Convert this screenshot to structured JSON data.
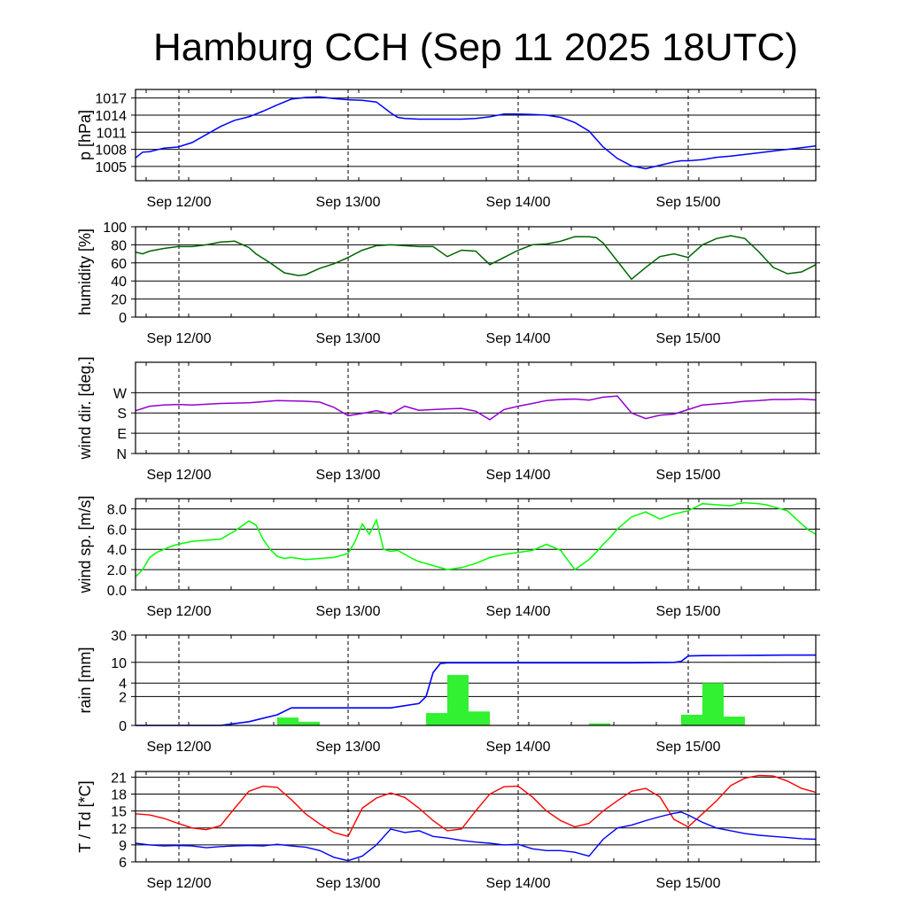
{
  "title": "Hamburg CCH (Sep 11 2025 18UTC)",
  "time_labels": [
    "Sep 12/00",
    "Sep 13/00",
    "Sep 14/00",
    "Sep 15/00"
  ],
  "colors": {
    "pressure": "#0000ff",
    "humidity": "#006400",
    "wind_dir": "#9400d3",
    "wind_speed": "#00ff00",
    "rain_bars": "#32f032",
    "rain_cum": "#0000ff",
    "temperature": "#ff0000",
    "dewpoint": "#0000ff"
  },
  "chart_data": [
    {
      "type": "line",
      "id": "pressure",
      "ylabel": "p [hPa]",
      "xrange_hours": [
        0,
        96
      ],
      "ylim": [
        1002.5,
        1018.5
      ],
      "yticks": [
        1005,
        1008,
        1011,
        1014,
        1017
      ],
      "series": [
        {
          "x": [
            0,
            1,
            2,
            3,
            4,
            6,
            8,
            12,
            14,
            16,
            18,
            20,
            22,
            24,
            26,
            28,
            30,
            32,
            34,
            36,
            37,
            38,
            40,
            42,
            44,
            46,
            48,
            50,
            52,
            54,
            56,
            58,
            60,
            62,
            64,
            66,
            68,
            70,
            72,
            74,
            76,
            77,
            78,
            80,
            82,
            84,
            86,
            88,
            90,
            92,
            94,
            96
          ],
          "y": [
            1006.5,
            1007.5,
            1007.6,
            1007.9,
            1008.2,
            1008.4,
            1009.2,
            1012.0,
            1013.1,
            1013.7,
            1014.7,
            1015.8,
            1016.8,
            1017.1,
            1017.2,
            1016.9,
            1016.7,
            1016.6,
            1016.3,
            1014.4,
            1013.6,
            1013.4,
            1013.3,
            1013.3,
            1013.3,
            1013.3,
            1013.4,
            1013.7,
            1014.2,
            1014.2,
            1014.1,
            1014.0,
            1013.6,
            1012.7,
            1011.2,
            1008.4,
            1006.4,
            1005.1,
            1004.6,
            1005.2,
            1005.8,
            1006.0,
            1006.0,
            1006.2,
            1006.6,
            1006.8,
            1007.1,
            1007.4,
            1007.7,
            1008.0,
            1008.3,
            1008.6
          ]
        }
      ]
    },
    {
      "type": "line",
      "id": "humidity",
      "ylabel": "humidity [%]",
      "xrange_hours": [
        0,
        96
      ],
      "ylim": [
        0,
        100
      ],
      "yticks": [
        0,
        20,
        40,
        60,
        80,
        100
      ],
      "series": [
        {
          "x": [
            0,
            1,
            2,
            4,
            6,
            8,
            10,
            12,
            14,
            16,
            17,
            19,
            21,
            23,
            24,
            26,
            28,
            30,
            32,
            34,
            36,
            38,
            40,
            42,
            44,
            46,
            48,
            50,
            52,
            54,
            56,
            58,
            60,
            62,
            64,
            65,
            66,
            70,
            72,
            74,
            76,
            78,
            80,
            82,
            84,
            86,
            88,
            90,
            92,
            94,
            96
          ],
          "y": [
            72,
            70,
            73,
            76,
            78,
            78,
            80,
            83,
            84,
            77,
            70,
            60,
            49,
            46,
            47,
            54,
            59,
            66,
            74,
            79,
            80,
            79,
            78,
            78,
            67,
            74,
            73,
            58,
            66,
            74,
            80,
            81,
            84,
            89,
            89,
            88,
            82,
            42,
            55,
            67,
            70,
            66,
            80,
            87,
            90,
            87,
            72,
            55,
            48,
            50,
            58
          ]
        }
      ]
    },
    {
      "type": "line",
      "id": "wind_direction",
      "ylabel": "wind dir. [deg.]",
      "xrange_hours": [
        0,
        96
      ],
      "ylim": [
        0,
        405
      ],
      "yticks": [
        0,
        90,
        180,
        270
      ],
      "ytick_labels": [
        "N",
        "E",
        "S",
        "W"
      ],
      "series": [
        {
          "x": [
            0,
            2,
            4,
            6,
            8,
            12,
            16,
            20,
            24,
            26,
            28,
            30,
            32,
            34,
            36,
            38,
            40,
            42,
            44,
            46,
            48,
            50,
            52,
            54,
            56,
            58,
            60,
            62,
            64,
            66,
            68,
            70,
            72,
            74,
            76,
            78,
            80,
            82,
            84,
            86,
            88,
            90,
            92,
            94,
            96
          ],
          "y": [
            190,
            210,
            215,
            218,
            215,
            222,
            225,
            235,
            232,
            228,
            205,
            168,
            178,
            190,
            175,
            210,
            192,
            195,
            198,
            200,
            188,
            150,
            195,
            210,
            222,
            235,
            240,
            242,
            237,
            250,
            255,
            180,
            155,
            170,
            175,
            195,
            215,
            220,
            225,
            232,
            235,
            240,
            240,
            242,
            238
          ]
        }
      ]
    },
    {
      "type": "line",
      "id": "wind_speed",
      "ylabel": "wind sp. [m/s]",
      "xrange_hours": [
        0,
        96
      ],
      "ylim": [
        0,
        9
      ],
      "yticks": [
        0.0,
        2.0,
        4.0,
        6.0,
        8.0
      ],
      "ytick_labels": [
        "0.0",
        "2.0",
        "4.0",
        "6.0",
        "8.0"
      ],
      "series": [
        {
          "x": [
            0,
            1,
            2,
            3,
            5,
            6,
            8,
            10,
            12,
            14,
            16,
            17,
            18,
            19,
            20,
            21,
            22,
            24,
            26,
            28,
            30,
            31,
            32,
            33,
            34,
            35,
            36,
            37,
            38,
            39,
            40,
            42,
            44,
            46,
            48,
            50,
            52,
            54,
            56,
            58,
            60,
            62,
            64,
            65,
            66,
            67,
            68,
            70,
            72,
            74,
            76,
            78,
            80,
            82,
            84,
            85,
            86,
            88,
            89,
            90,
            92,
            94,
            95,
            96
          ],
          "y": [
            1.3,
            2.0,
            3.2,
            3.7,
            4.3,
            4.5,
            4.8,
            4.9,
            5.0,
            5.8,
            6.8,
            6.4,
            5.0,
            4.0,
            3.3,
            3.1,
            3.2,
            3.0,
            3.1,
            3.2,
            3.6,
            4.8,
            6.5,
            5.5,
            6.9,
            4.0,
            3.8,
            3.9,
            3.5,
            3.1,
            2.8,
            2.4,
            2.0,
            2.2,
            2.6,
            3.2,
            3.5,
            3.7,
            3.9,
            4.5,
            3.9,
            2.0,
            3.0,
            3.7,
            4.5,
            5.2,
            6.0,
            7.2,
            7.7,
            7.0,
            7.5,
            7.8,
            8.5,
            8.4,
            8.3,
            8.5,
            8.6,
            8.5,
            8.4,
            8.2,
            7.8,
            6.5,
            5.9,
            5.5
          ]
        }
      ]
    },
    {
      "type": "bar",
      "id": "rain",
      "ylabel": "rain [mm]",
      "xrange_hours": [
        0,
        96
      ],
      "yticks": [
        0,
        2,
        4,
        10,
        30
      ],
      "ytick_labels": [
        "0",
        "2",
        "4",
        "10",
        "30"
      ],
      "series": [
        {
          "kind": "bar",
          "x": [
            20,
            23,
            41,
            44,
            47,
            64,
            77,
            80,
            83
          ],
          "width_hours": 3,
          "values": [
            0.35,
            0.15,
            0.6,
            5.8,
            0.7,
            0.08,
            0.5,
            4.0,
            0.4
          ]
        },
        {
          "kind": "line",
          "x": [
            0,
            4,
            8,
            10,
            12,
            16,
            20,
            22,
            24,
            28,
            32,
            36,
            40,
            41,
            42,
            43,
            44,
            46,
            48,
            52,
            56,
            60,
            64,
            68,
            70,
            76,
            77,
            78,
            80,
            84,
            88,
            92,
            96
          ],
          "y": [
            0,
            0,
            0,
            0,
            0,
            0.15,
            0.5,
            0.95,
            0.95,
            0.95,
            0.95,
            0.95,
            1.3,
            2.0,
            6.5,
            9.5,
            9.8,
            9.8,
            9.8,
            9.8,
            9.8,
            9.8,
            9.8,
            9.8,
            9.8,
            10.0,
            10.4,
            13.0,
            13.2,
            13.3,
            13.4,
            13.5,
            13.5
          ]
        }
      ]
    },
    {
      "type": "line",
      "id": "temperature_dewpoint",
      "ylabel": "T / Td [*C]",
      "xrange_hours": [
        0,
        96
      ],
      "ylim": [
        6,
        22
      ],
      "yticks": [
        6,
        9,
        12,
        15,
        18,
        21
      ],
      "series": [
        {
          "x": [
            0,
            2,
            4,
            6,
            8,
            10,
            12,
            14,
            16,
            18,
            20,
            22,
            24,
            26,
            28,
            30,
            32,
            34,
            36,
            38,
            40,
            42,
            44,
            46,
            48,
            50,
            52,
            54,
            56,
            58,
            60,
            62,
            64,
            66,
            68,
            70,
            72,
            74,
            76,
            78,
            80,
            82,
            84,
            86,
            88,
            90,
            92,
            94,
            96
          ],
          "y": [
            14.5,
            14.3,
            13.7,
            12.8,
            12.0,
            11.7,
            12.4,
            15.5,
            18.5,
            19.4,
            19.2,
            17.0,
            14.5,
            12.7,
            11.2,
            10.5,
            15.5,
            17.3,
            18.2,
            17.4,
            15.5,
            13.3,
            11.5,
            11.8,
            15.0,
            18.0,
            19.3,
            19.4,
            17.5,
            15.0,
            13.3,
            12.2,
            12.8,
            15.0,
            16.8,
            18.5,
            19.0,
            17.5,
            13.5,
            12.2,
            14.5,
            16.8,
            19.5,
            20.8,
            21.3,
            21.2,
            20.3,
            19.0,
            18.3
          ]
        },
        {
          "x": [
            0,
            2,
            4,
            6,
            8,
            10,
            12,
            14,
            16,
            18,
            20,
            22,
            24,
            26,
            28,
            30,
            32,
            34,
            36,
            38,
            40,
            42,
            44,
            46,
            48,
            50,
            52,
            54,
            56,
            58,
            60,
            62,
            64,
            66,
            68,
            70,
            72,
            74,
            76,
            77,
            78,
            80,
            82,
            84,
            86,
            88,
            90,
            92,
            94,
            96
          ],
          "y": [
            9.3,
            9.0,
            8.8,
            8.9,
            8.8,
            8.5,
            8.7,
            8.8,
            8.9,
            8.8,
            9.1,
            8.8,
            8.6,
            8.0,
            6.8,
            6.2,
            7.0,
            9.0,
            11.8,
            11.2,
            11.5,
            10.5,
            10.2,
            9.8,
            9.5,
            9.3,
            9.0,
            9.1,
            8.3,
            8.0,
            8.0,
            7.7,
            7.0,
            10.0,
            12.0,
            12.5,
            13.3,
            14.0,
            14.6,
            14.8,
            14.3,
            13.0,
            12.0,
            11.5,
            11.0,
            10.7,
            10.5,
            10.3,
            10.1,
            10.0
          ]
        }
      ]
    }
  ]
}
